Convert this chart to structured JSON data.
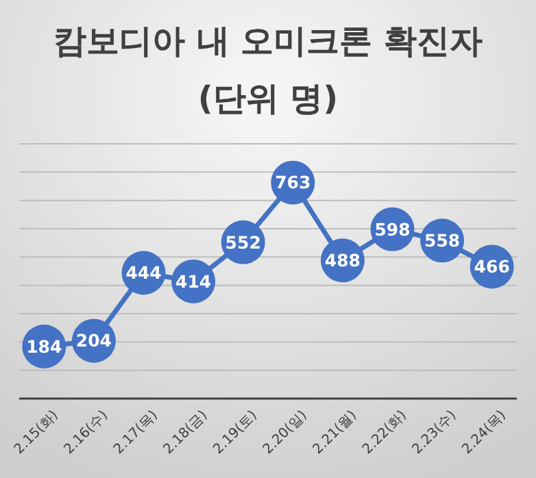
{
  "chart_data": {
    "type": "line",
    "title": "캄보디아 내 오미크론 확진자",
    "subtitle": "(단위 명)",
    "categories": [
      "2.15(화)",
      "2.16(수)",
      "2.17(목)",
      "2.18(금)",
      "2.19(토)",
      "2.20(일)",
      "2.21(월)",
      "2.22(화)",
      "2.23(수)",
      "2.24(목)"
    ],
    "series": [
      {
        "color": "#4472c4",
        "values": [
          184,
          204,
          444,
          414,
          552,
          763,
          488,
          598,
          558,
          466
        ]
      }
    ],
    "ylim": [
      0,
      900
    ],
    "yticks": [
      {
        "value": 0,
        "label": null
      },
      {
        "value": 100,
        "label": null
      },
      {
        "value": 200,
        "label": null
      },
      {
        "value": 300,
        "label": null
      },
      {
        "value": 400,
        "label": null
      },
      {
        "value": 500,
        "label": null
      },
      {
        "value": 600,
        "label": null
      },
      {
        "value": 700,
        "label": null
      },
      {
        "value": 800,
        "label": null
      },
      {
        "value": 900,
        "label": null
      }
    ],
    "grid": "y",
    "tick_labels": "x",
    "data_labels": true,
    "marker": "circle",
    "line_style": "solid"
  }
}
